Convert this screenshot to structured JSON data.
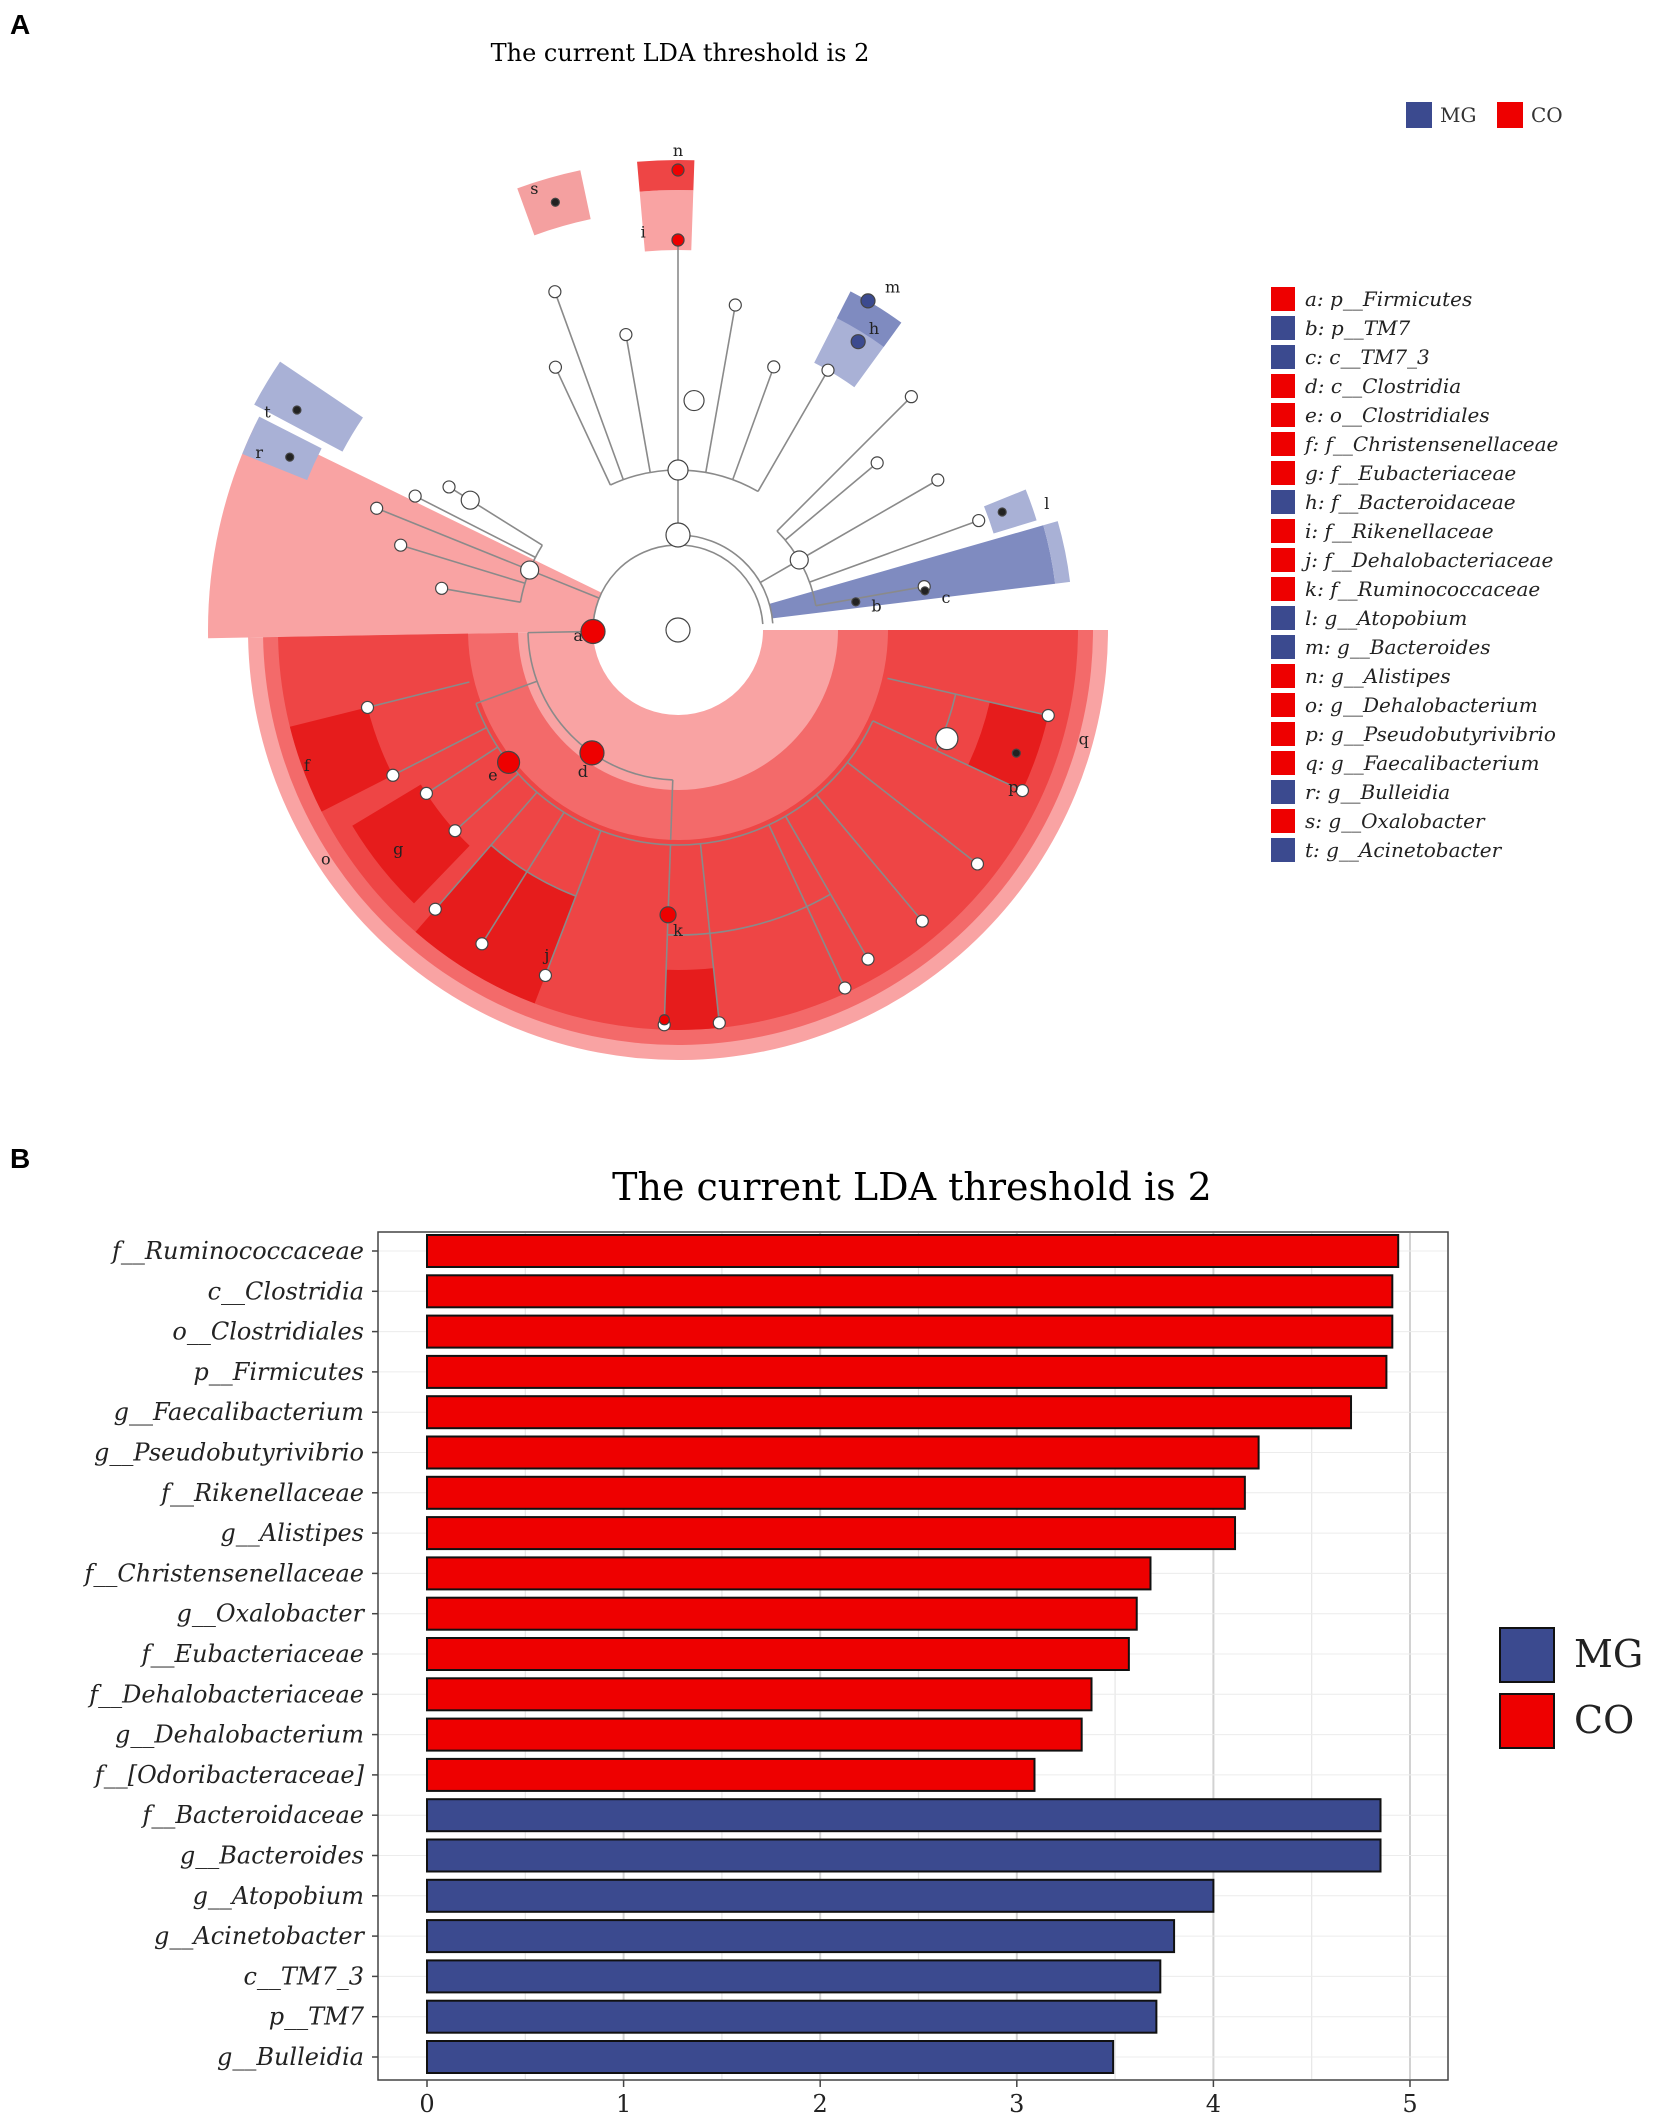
{
  "colors": {
    "MG": "#3b4a8f",
    "CO": "#ee0000"
  },
  "panel_a": {
    "label": "A",
    "title": "The current LDA threshold is 2",
    "legend": [
      {
        "name": "MG",
        "color": "#3b4a8f"
      },
      {
        "name": "CO",
        "color": "#ee0000"
      }
    ],
    "clades": [
      {
        "id": "a",
        "label": "a: p__Firmicutes",
        "group": "CO"
      },
      {
        "id": "b",
        "label": "b: p__TM7",
        "group": "MG"
      },
      {
        "id": "c",
        "label": "c: c__TM7_3",
        "group": "MG"
      },
      {
        "id": "d",
        "label": "d: c__Clostridia",
        "group": "CO"
      },
      {
        "id": "e",
        "label": "e: o__Clostridiales",
        "group": "CO"
      },
      {
        "id": "f",
        "label": "f: f__Christensenellaceae",
        "group": "CO"
      },
      {
        "id": "g",
        "label": "g: f__Eubacteriaceae",
        "group": "CO"
      },
      {
        "id": "h",
        "label": "h: f__Bacteroidaceae",
        "group": "MG"
      },
      {
        "id": "i",
        "label": "i: f__Rikenellaceae",
        "group": "CO"
      },
      {
        "id": "j",
        "label": "j: f__Dehalobacteriaceae",
        "group": "CO"
      },
      {
        "id": "k",
        "label": "k: f__Ruminococcaceae",
        "group": "CO"
      },
      {
        "id": "l",
        "label": "l: g__Atopobium",
        "group": "MG"
      },
      {
        "id": "m",
        "label": "m: g__Bacteroides",
        "group": "MG"
      },
      {
        "id": "n",
        "label": "n: g__Alistipes",
        "group": "CO"
      },
      {
        "id": "o",
        "label": "o: g__Dehalobacterium",
        "group": "CO"
      },
      {
        "id": "p",
        "label": "p: g__Pseudobutyrivibrio",
        "group": "CO"
      },
      {
        "id": "q",
        "label": "q: g__Faecalibacterium",
        "group": "CO"
      },
      {
        "id": "r",
        "label": "r: g__Bulleidia",
        "group": "MG"
      },
      {
        "id": "s",
        "label": "s: g__Oxalobacter",
        "group": "CO"
      },
      {
        "id": "t",
        "label": "t: g__Acinetobacter",
        "group": "MG"
      }
    ]
  },
  "chart_data": {
    "type": "bar",
    "orientation": "horizontal",
    "panel_label": "B",
    "title": "The current LDA threshold is 2",
    "xlabel": "",
    "ylabel": "",
    "xlim": [
      0,
      5.15
    ],
    "xticks": [
      0,
      1,
      2,
      3,
      4,
      5
    ],
    "grid": true,
    "legend_position": "right",
    "legend": [
      {
        "name": "MG",
        "color": "#3b4a8f"
      },
      {
        "name": "CO",
        "color": "#ee0000"
      }
    ],
    "categories": [
      "f__Ruminococcaceae",
      "c__Clostridia",
      "o__Clostridiales",
      "p__Firmicutes",
      "g__Faecalibacterium",
      "g__Pseudobutyrivibrio",
      "f__Rikenellaceae",
      "g__Alistipes",
      "f__Christensenellaceae",
      "g__Oxalobacter",
      "f__Eubacteriaceae",
      "f__Dehalobacteriaceae",
      "g__Dehalobacterium",
      "f__[Odoribacteraceae]",
      "f__Bacteroidaceae",
      "g__Bacteroides",
      "g__Atopobium",
      "g__Acinetobacter",
      "c__TM7_3",
      "p__TM7",
      "g__Bulleidia"
    ],
    "values": [
      4.94,
      4.91,
      4.91,
      4.88,
      4.7,
      4.23,
      4.16,
      4.11,
      3.68,
      3.61,
      3.57,
      3.38,
      3.33,
      3.09,
      4.85,
      4.85,
      4.0,
      3.8,
      3.73,
      3.71,
      3.49
    ],
    "groups": [
      "CO",
      "CO",
      "CO",
      "CO",
      "CO",
      "CO",
      "CO",
      "CO",
      "CO",
      "CO",
      "CO",
      "CO",
      "CO",
      "CO",
      "MG",
      "MG",
      "MG",
      "MG",
      "MG",
      "MG",
      "MG"
    ]
  }
}
